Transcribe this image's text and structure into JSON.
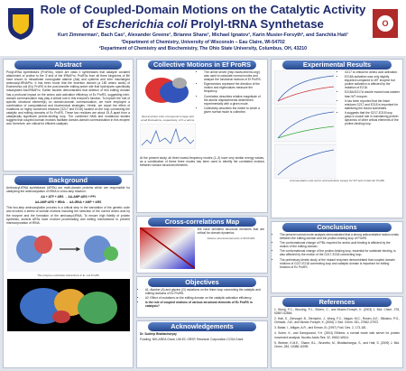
{
  "header": {
    "title": [
      "Role of Coupled-Domain Motions on the Catalytic Activity of ",
      "Escherichia coli",
      " Prolyl-tRNA Synthetase"
    ],
    "authors": "Kurt Zimmerman¹, Bach Cao¹, Alexander Greene¹, Brianne Shane¹, Michael Ignatov¹, Karin Musier-Forsyth², and Sanchita Hati¹",
    "affiliations": [
      "¹Department of Chemistry, University of Wisconsin – Eau Claire, WI-54702",
      "²Department of Chemistry and Biochemistry, The Ohio State University, Columbus, OH, 43210"
    ]
  },
  "abstract": {
    "title": "Abstract",
    "text": "Prolyl-tRNA synthetases (ProRSs), which are class II synthetases that catalyze covalent attachment of proline to the 3′-end of the tRNAPro. ProRSs from all three kingdoms of life have shown to misactivate noncognate alanine (Ala) and cysteine and form mischarged aminoacyl-tRNAPro. It has been found that the insertion domain (a 180 amino acids) of Escherichia coli (Ec) ProRS is the post-transfer editing active site that hydrolyzes specifically misacylated Ala-tRNAPro. Earlier studies demonstrated that deletion of this editing domain has a profound impact on the amino acid activation efficiency of Ec ProRS, suggesting inter-domain communication may play a critical role in this enzyme's function. To explore the role of specific structural element(s) on domain-domain communication, we have employed a combination of computational and biochemical strategies. Herein, we report the effect of mutations on highly conserved residues (G217 and E218) located on the loop connecting the catalytic and editing domains of Ec ProRS. These two residues are about 15 Å apart from a catalytically significant proline-binding loop. The combined NMA and mutational studies suggest that coupled domain motions facilitate domain-domain communication in this enzyme and, therefore, are critical for efficient catalysis."
  },
  "background": {
    "title": "Background",
    "text": "Aminoacyl-tRNA synthetases (ARSs) are multi-domain proteins which are responsible for catalyzing the aminoacylation of tRNA in a two-step reaction:",
    "equations": [
      "AA + ATP + ARS → AA-AMP:ARS + PPi",
      "AA-AMP:ARS + tRNA → AA-tRNA + AMP + ARS"
    ],
    "text2": "This two-step aminoacylation process is a critical step in the translation of the genetic code and involves a series of domain motions including the selection of the correct amino acid by the enzyme and the formation of the aminoacyl-tRNA. To ensure high fidelity of protein synthesis, several ARSs have evolved proofreading and editing mechanisms to prevent misincorporation of tRNA.",
    "caption": "The enzyme–substrate interactions in E. coli ProRS"
  },
  "motions": {
    "title": "Collective Motions in Ef ProRS",
    "caption": "Red and blue color correspond to large and small fluctuations, respectively, of C-α atoms.",
    "bullets": [
      "The online server (http://www.elnemo.org/) was used to calculate normal modes and analyze the functional motions of Ef ProRS.",
      "Eigenvectors represent the direction of the motion and eigenvalues measure the frequency.",
      "Correlation describes relative magnitude of the atomic displacements determined experimentally with a given mode.",
      "Collectivity describes the extent to which a given normal mode is collective."
    ],
    "text": "At the present study, all three lowest-frequency modes (1–3) have very similar energy values, as a combination of these three modes has been used to identify the correlated motions between various structural elements."
  },
  "crosscorr": {
    "title": "Cross-correlations Map",
    "text": "We have identified structural elements that are critical for domain dynamics.",
    "caption": "Various structural elements of Ef ProRS"
  },
  "objectives": {
    "title": "Objectives",
    "items": [
      "#1: Alanine (A) and glycine (G) mutations on the linker loop connecting the catalytic and editing domains of Ec ProRS.",
      "#2: Effect of mutations on the editing domain on the catalytic activation efficiency.",
      "Is the role of coupled motions of various structural elements of Ec ProRS in catalysis?"
    ]
  },
  "ack": {
    "title": "Acknowledgements",
    "names": "Dr. Sudeep Bhattacharyay",
    "funding": "Funding: NIH-AREA Grant, UW-EC ORSP, Research Corporation CCSA Grant"
  },
  "results": {
    "title": "Experimental Results",
    "bullets": [
      "G217 is critical for amino acid activation.",
      "E218A activation was only slightly impaired compared to WT enzyme but proline activation is affected by the mutation of E218.",
      "E218A/G217A double mutant was weaker than WT enzyme.",
      "It has been reported that the linker residues G217 and E218 is important for stabilizing the bound substrates.",
      "It suggests that the G217-E218 loop plays a crucial role in maintaining protein dynamics of other critical elements of the proline-binding loop."
    ],
    "caption": "Aminoacylation and amino acid activation assays for WT and mutant Ec ProRS"
  },
  "conclusions": {
    "title": "Conclusions",
    "items": [
      "The present normal mode analysis demonstrated that a strong anticorrelated motion exists between the editing domain and the proline-binding loop of ProRS.",
      "The conformational change of PBL required for amino acid binding is affected by the motion of the editing domain.",
      "The conformational change of the proline-binding loop, essential for substrate binding, is also affected by the motion of the G217-E218 connecting loop.",
      "The preliminary kinetic study of the mutant enzymes demonstrated that coupled domain motions of G217-E218 connecting loop and catalytic domain is important for editing function of Ec ProRS."
    ]
  },
  "references": {
    "title": "References",
    "items": [
      "1. Wong, F.C., Beuning, P.J., Silvers, C., and Musier-Forsyth, K. (2003) J. Biol. Chem. 278, 52857-52864.",
      "2. Hati, S., Ziervogel, B., Sternjohn, J., Wong, F.C., Nagan, M.C., Rosen, A.E., Siliciano, P.G., Chihade, J.W., and Musier-Forsyth, K. (2006) J. Biol. Chem. 281, 27862-27872.",
      "3. Bahar, I., Atilgan, A.R., and Erman, B. (1997) Fold. Des. 2, 173-181.",
      "4. Suhre, K., and Sanejouand, Y.H. (2004) ElNémo: a normal mode web server for protein movement analysis. Nucleic Acids Res. 32, W610-W614.",
      "5. Weimer, K.M.E., Shane, B.L., Brunetto, M., Bhattacharyya, S., and Hati, S. (2009) J. Biol. Chem. 284, 10088-10099."
    ]
  }
}
